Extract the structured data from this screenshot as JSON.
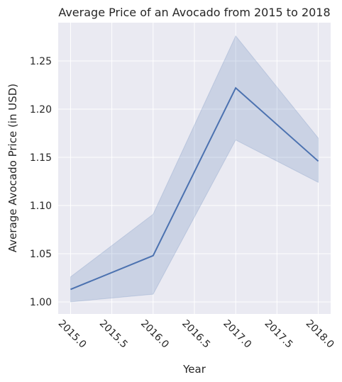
{
  "chart_data": {
    "type": "line",
    "title": "Average Price of an Avocado from 2015 to 2018",
    "x_label": "Year",
    "y_label": "Average Avocado Price (in USD)",
    "x": [
      2015,
      2016,
      2017,
      2018
    ],
    "series": [
      {
        "color": "#4c72b0",
        "values": [
          1.013,
          1.048,
          1.222,
          1.146
        ],
        "ci_lower": [
          1.0,
          1.008,
          1.168,
          1.124
        ],
        "ci_upper": [
          1.026,
          1.091,
          1.276,
          1.17
        ]
      }
    ],
    "xlim": [
      2014.85,
      2018.15
    ],
    "xticks": [
      {
        "value": 2015.0,
        "label": "2015.0"
      },
      {
        "value": 2015.5,
        "label": "2015.5"
      },
      {
        "value": 2016.0,
        "label": "2016.0"
      },
      {
        "value": 2016.5,
        "label": "2016.5"
      },
      {
        "value": 2017.0,
        "label": "2017.0"
      },
      {
        "value": 2017.5,
        "label": "2017.5"
      },
      {
        "value": 2018.0,
        "label": "2018.0"
      }
    ],
    "ylim": [
      0.9875,
      1.2897
    ],
    "yticks": [
      {
        "value": 1.0,
        "label": "1.00"
      },
      1.05,
      {
        "value": 1.1,
        "label": "1.10"
      },
      1.15,
      {
        "value": 1.2,
        "label": "1.20"
      },
      1.25
    ],
    "grid": true
  }
}
